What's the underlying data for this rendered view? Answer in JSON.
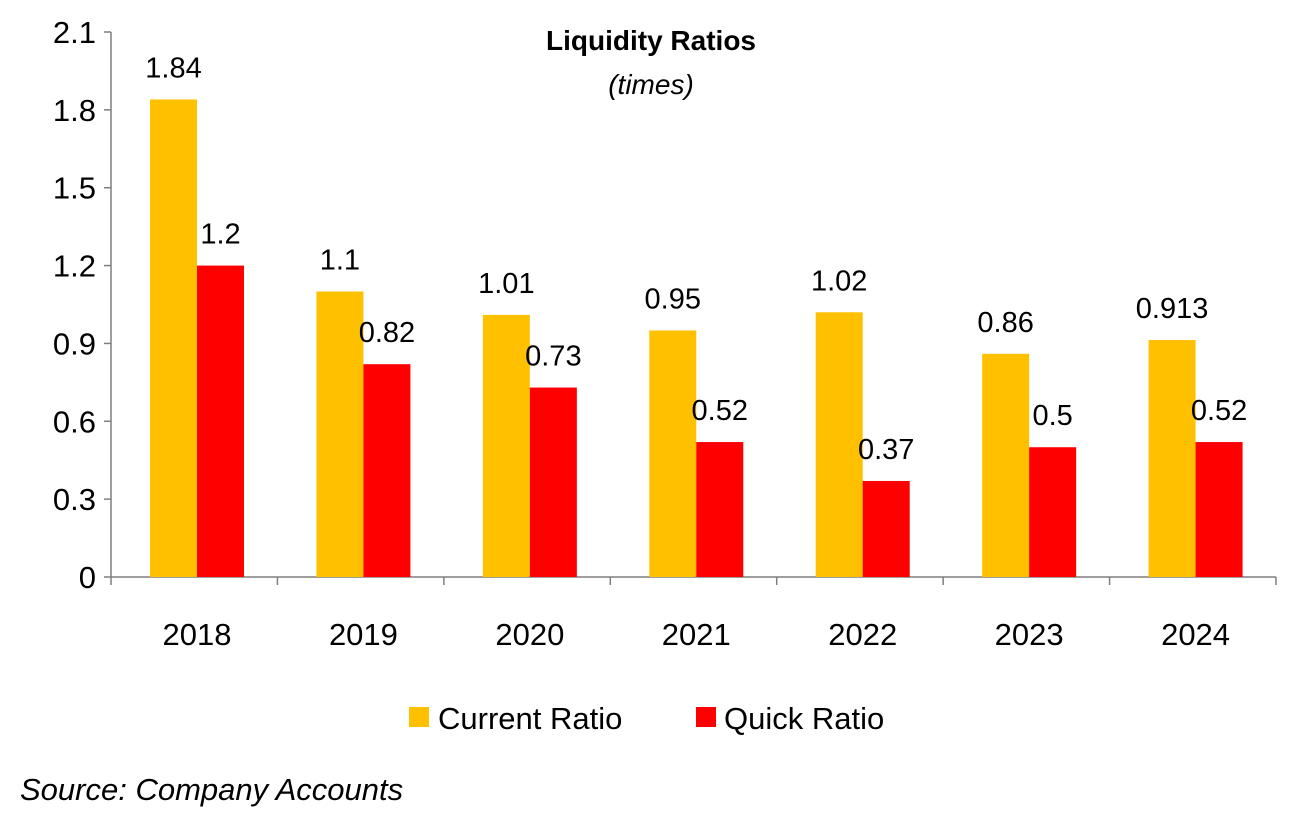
{
  "chart_data": {
    "type": "bar",
    "title": "Liquidity Ratios",
    "subtitle": "(times)",
    "categories": [
      "2018",
      "2019",
      "2020",
      "2021",
      "2022",
      "2023",
      "2024"
    ],
    "series": [
      {
        "name": "Current Ratio",
        "color": "#FFC000",
        "values": [
          1.84,
          1.1,
          1.01,
          0.95,
          1.02,
          0.86,
          0.913
        ],
        "labels": [
          "1.84",
          "1.1",
          "1.01",
          "0.95",
          "1.02",
          "0.86",
          "0.913"
        ]
      },
      {
        "name": "Quick Ratio",
        "color": "#FF0000",
        "values": [
          1.2,
          0.82,
          0.73,
          0.52,
          0.37,
          0.5,
          0.52
        ],
        "labels": [
          "1.2",
          "0.82",
          "0.73",
          "0.52",
          "0.37",
          "0.5",
          "0.52"
        ]
      }
    ],
    "xlabel": "",
    "ylabel": "",
    "ylim": [
      0,
      2.1
    ],
    "yticks": [
      "0",
      "0.3",
      "0.6",
      "0.9",
      "1.2",
      "1.5",
      "1.8",
      "2.1"
    ],
    "grid": false,
    "legend": "bottom",
    "source": "Source: Company Accounts"
  }
}
